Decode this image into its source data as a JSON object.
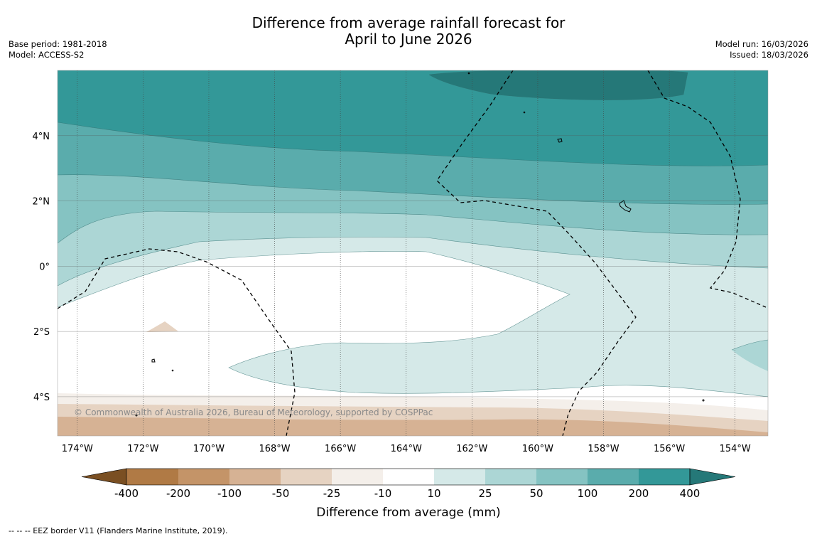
{
  "title": {
    "line1": "Difference from average rainfall forecast for",
    "line2": "April to June 2026"
  },
  "meta": {
    "base_period": "Base period: 1981-2018",
    "model": "Model: ACCESS-S2",
    "model_run": "Model run: 16/03/2026",
    "issued": "Issued: 18/03/2026"
  },
  "map": {
    "copyright": "© Commonwealth of Australia 2026, Bureau of Meteorology, supported by COSPPac",
    "lon_ticks": [
      {
        "label": "174°W",
        "value": -174
      },
      {
        "label": "172°W",
        "value": -172
      },
      {
        "label": "170°W",
        "value": -170
      },
      {
        "label": "168°W",
        "value": -168
      },
      {
        "label": "166°W",
        "value": -166
      },
      {
        "label": "164°W",
        "value": -164
      },
      {
        "label": "162°W",
        "value": -162
      },
      {
        "label": "160°W",
        "value": -160
      },
      {
        "label": "158°W",
        "value": -158
      },
      {
        "label": "156°W",
        "value": -156
      },
      {
        "label": "154°W",
        "value": -154
      }
    ],
    "lat_ticks": [
      {
        "label": "4°N",
        "value": 4
      },
      {
        "label": "2°N",
        "value": 2
      },
      {
        "label": "0°",
        "value": 0
      },
      {
        "label": "2°S",
        "value": -2
      },
      {
        "label": "4°S",
        "value": -4
      }
    ],
    "lon_range": [
      -174.6,
      -153.0
    ],
    "lat_range": [
      -5.2,
      6.0
    ]
  },
  "colorbar": {
    "label": "Difference from average (mm)",
    "ticks": [
      "-400",
      "-200",
      "-100",
      "-50",
      "-25",
      "-10",
      "10",
      "25",
      "50",
      "100",
      "200",
      "400"
    ],
    "colors": [
      "#7a4f22",
      "#b07a45",
      "#c49468",
      "#d6b294",
      "#e6d3c2",
      "#f4efea",
      "#ffffff",
      "#d5e9e8",
      "#acd6d5",
      "#85c3c2",
      "#5aacac",
      "#339898",
      "#257878"
    ]
  },
  "footnote": "--  --  -- EEZ border V11 (Flanders Marine Institute, 2019)."
}
